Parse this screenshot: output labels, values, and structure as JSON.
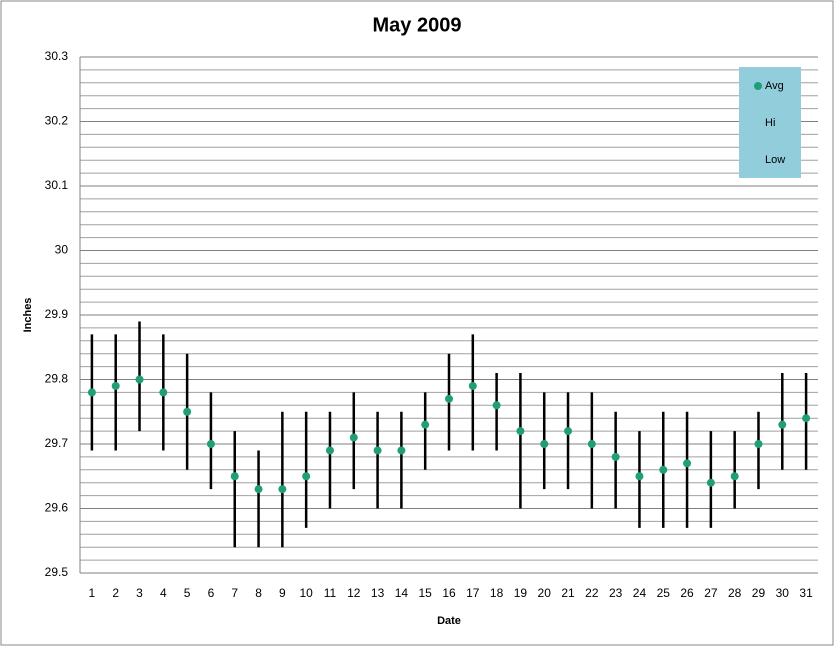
{
  "chart_data": {
    "type": "hilo",
    "title": "May 2009",
    "x_label": "Date",
    "y_label": "Inches",
    "categories": [
      "1",
      "2",
      "3",
      "4",
      "5",
      "6",
      "7",
      "8",
      "9",
      "10",
      "11",
      "12",
      "13",
      "14",
      "15",
      "16",
      "17",
      "18",
      "19",
      "20",
      "21",
      "22",
      "23",
      "24",
      "25",
      "26",
      "27",
      "28",
      "29",
      "30",
      "31"
    ],
    "series": [
      {
        "name": "Avg",
        "color": "#1f9e78",
        "marker": "circle",
        "values": [
          29.78,
          29.79,
          29.8,
          29.78,
          29.75,
          29.7,
          29.65,
          29.63,
          29.63,
          29.65,
          29.69,
          29.71,
          29.69,
          29.69,
          29.73,
          29.77,
          29.79,
          29.76,
          29.72,
          29.7,
          29.72,
          29.7,
          29.68,
          29.65,
          29.66,
          29.67,
          29.64,
          29.65,
          29.7,
          29.73,
          29.74
        ]
      },
      {
        "name": "Hi",
        "color": "#000000",
        "marker": "none",
        "values": [
          29.87,
          29.87,
          29.89,
          29.87,
          29.84,
          29.78,
          29.72,
          29.69,
          29.75,
          29.75,
          29.75,
          29.78,
          29.75,
          29.75,
          29.78,
          29.84,
          29.87,
          29.81,
          29.81,
          29.78,
          29.78,
          29.78,
          29.75,
          29.72,
          29.75,
          29.75,
          29.72,
          29.72,
          29.75,
          29.81,
          29.81
        ]
      },
      {
        "name": "Low",
        "color": "#000000",
        "marker": "none",
        "values": [
          29.69,
          29.69,
          29.72,
          29.69,
          29.66,
          29.63,
          29.54,
          29.54,
          29.54,
          29.57,
          29.6,
          29.63,
          29.6,
          29.6,
          29.66,
          29.69,
          29.69,
          29.69,
          29.6,
          29.63,
          29.63,
          29.6,
          29.6,
          29.57,
          29.57,
          29.57,
          29.57,
          29.6,
          29.63,
          29.66,
          29.66
        ]
      }
    ],
    "ylim": [
      29.5,
      30.3
    ],
    "yticks": [
      29.5,
      29.6,
      29.7,
      29.8,
      29.9,
      30,
      30.1,
      30.2,
      30.3
    ],
    "minor_yticks": [
      29.52,
      29.54,
      29.56,
      29.58,
      29.62,
      29.64,
      29.66,
      29.68,
      29.72,
      29.74,
      29.76,
      29.78,
      29.82,
      29.84,
      29.86,
      29.88,
      29.92,
      29.94,
      29.96,
      29.98,
      30.02,
      30.04,
      30.06,
      30.08,
      30.12,
      30.14,
      30.16,
      30.18,
      30.22,
      30.24,
      30.26,
      30.28
    ],
    "grid": true,
    "legend_position": "upper right",
    "legend_color": "#92cddc"
  }
}
